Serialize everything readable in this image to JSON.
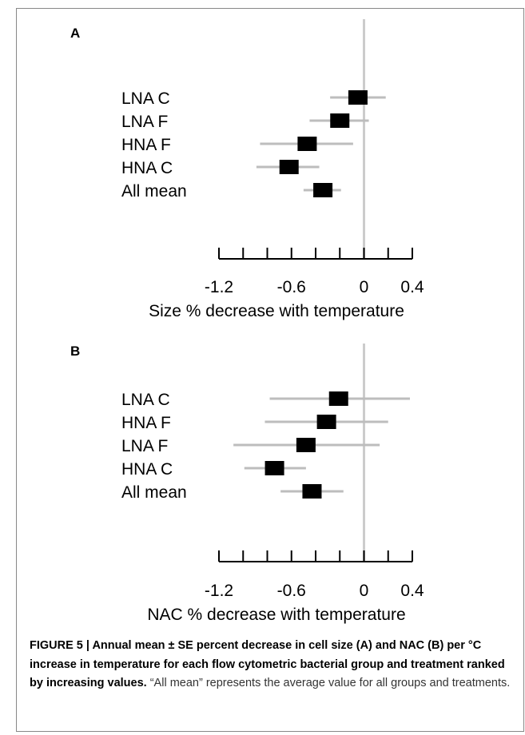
{
  "chart_data": [
    {
      "type": "forest",
      "panel": "A",
      "categories": [
        "LNA C",
        "LNA F",
        "HNA F",
        "HNA C",
        "All mean"
      ],
      "estimates": [
        -0.05,
        -0.2,
        -0.47,
        -0.62,
        -0.34
      ],
      "ci_lower": [
        -0.28,
        -0.45,
        -0.86,
        -0.89,
        -0.5
      ],
      "ci_upper": [
        0.18,
        0.04,
        -0.09,
        -0.37,
        -0.19
      ],
      "xlim": [
        -1.2,
        0.4
      ],
      "xticks": [
        -1.2,
        -1.0,
        -0.8,
        -0.6,
        -0.4,
        -0.2,
        0,
        0.2,
        0.4
      ],
      "xtick_labels": [
        "-1.2",
        "-0.6",
        "0",
        "0.4"
      ],
      "xtick_label_values": [
        -1.2,
        -0.6,
        0,
        0.4
      ],
      "reference_line": 0,
      "xlabel": "Size % decrease with temperature"
    },
    {
      "type": "forest",
      "panel": "B",
      "categories": [
        "LNA C",
        "HNA F",
        "LNA F",
        "HNA C",
        "All mean"
      ],
      "estimates": [
        -0.21,
        -0.31,
        -0.48,
        -0.74,
        -0.43
      ],
      "ci_lower": [
        -0.78,
        -0.82,
        -1.08,
        -0.99,
        -0.69
      ],
      "ci_upper": [
        0.38,
        0.2,
        0.13,
        -0.48,
        -0.17
      ],
      "xlim": [
        -1.2,
        0.4
      ],
      "xticks": [
        -1.2,
        -1.0,
        -0.8,
        -0.6,
        -0.4,
        -0.2,
        0,
        0.2,
        0.4
      ],
      "xtick_labels": [
        "-1.2",
        "-0.6",
        "0",
        "0.4"
      ],
      "xtick_label_values": [
        -1.2,
        -0.6,
        0,
        0.4
      ],
      "reference_line": 0,
      "xlabel": "NAC % decrease with temperature"
    }
  ],
  "colors": {
    "marker": "#000000",
    "ci_line": "#bdbdbd",
    "reference_line": "#cccccc",
    "axis": "#000000"
  },
  "caption": {
    "bold": "FIGURE 5 | Annual mean ± SE percent decrease in cell size (A) and NAC (B) per °C increase in temperature for each flow cytometric bacterial group and treatment ranked by increasing values.",
    "normal": "“All mean” represents the average value for all groups and treatments."
  }
}
